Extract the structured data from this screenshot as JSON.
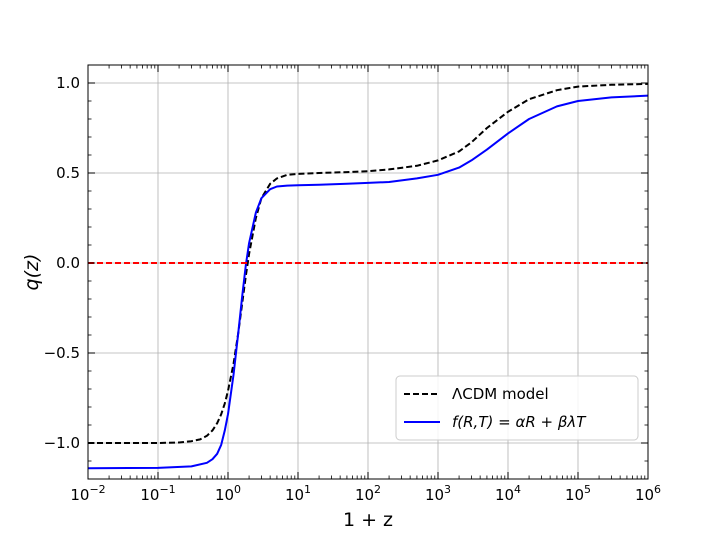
{
  "chart_data": {
    "type": "line",
    "xlabel": "1 + z",
    "ylabel": "q(z)",
    "xscale": "log",
    "xlim": [
      0.01,
      1000000
    ],
    "ylim": [
      -1.2,
      1.1
    ],
    "grid": true,
    "legend_position": "lower-right",
    "x_ticks": [
      {
        "base": "10",
        "exp": "−2",
        "value": 0.01
      },
      {
        "base": "10",
        "exp": "−1",
        "value": 0.1
      },
      {
        "base": "10",
        "exp": "0",
        "value": 1
      },
      {
        "base": "10",
        "exp": "1",
        "value": 10
      },
      {
        "base": "10",
        "exp": "2",
        "value": 100
      },
      {
        "base": "10",
        "exp": "3",
        "value": 1000
      },
      {
        "base": "10",
        "exp": "4",
        "value": 10000
      },
      {
        "base": "10",
        "exp": "5",
        "value": 100000
      },
      {
        "base": "10",
        "exp": "6",
        "value": 1000000
      }
    ],
    "y_ticks": [
      {
        "label": "−1.0",
        "value": -1.0
      },
      {
        "label": "−0.5",
        "value": -0.5
      },
      {
        "label": "0.0",
        "value": 0.0
      },
      {
        "label": "0.5",
        "value": 0.5
      },
      {
        "label": "1.0",
        "value": 1.0
      }
    ],
    "series": [
      {
        "name": "ΛCDM model",
        "color": "#000000",
        "dash": "dashed",
        "x": [
          0.01,
          0.05,
          0.1,
          0.2,
          0.3,
          0.4,
          0.5,
          0.6,
          0.7,
          0.8,
          0.9,
          1.0,
          1.2,
          1.4,
          1.6,
          1.8,
          2.0,
          2.5,
          3,
          4,
          5,
          7,
          10,
          20,
          50,
          100,
          200,
          500,
          1000,
          2000,
          3000,
          5000,
          10000,
          20000,
          50000,
          100000,
          300000,
          1000000
        ],
        "y": [
          -1.0,
          -1.0,
          -1.0,
          -0.997,
          -0.99,
          -0.98,
          -0.96,
          -0.93,
          -0.89,
          -0.84,
          -0.78,
          -0.71,
          -0.56,
          -0.39,
          -0.22,
          -0.07,
          0.05,
          0.25,
          0.36,
          0.44,
          0.47,
          0.49,
          0.495,
          0.5,
          0.505,
          0.51,
          0.52,
          0.54,
          0.57,
          0.62,
          0.67,
          0.75,
          0.84,
          0.91,
          0.96,
          0.98,
          0.99,
          0.995
        ]
      },
      {
        "name": "f(R,T) = αR + βλT",
        "color": "#0000ff",
        "dash": "solid",
        "x": [
          0.01,
          0.1,
          0.3,
          0.5,
          0.6,
          0.7,
          0.8,
          0.9,
          1.0,
          1.2,
          1.4,
          1.6,
          1.8,
          2.0,
          2.5,
          3,
          4,
          5,
          7,
          10,
          20,
          50,
          100,
          200,
          500,
          1000,
          2000,
          3000,
          5000,
          10000,
          20000,
          50000,
          100000,
          300000,
          1000000
        ],
        "y": [
          -1.14,
          -1.138,
          -1.13,
          -1.11,
          -1.09,
          -1.06,
          -1.01,
          -0.93,
          -0.84,
          -0.62,
          -0.39,
          -0.18,
          -0.01,
          0.11,
          0.28,
          0.36,
          0.41,
          0.425,
          0.43,
          0.432,
          0.435,
          0.44,
          0.445,
          0.45,
          0.47,
          0.49,
          0.53,
          0.57,
          0.63,
          0.72,
          0.8,
          0.87,
          0.9,
          0.92,
          0.93
        ]
      },
      {
        "name": "",
        "color": "#ff0000",
        "dash": "dashed",
        "x": [
          0.01,
          1000000
        ],
        "y": [
          0.0,
          0.0
        ]
      }
    ]
  }
}
